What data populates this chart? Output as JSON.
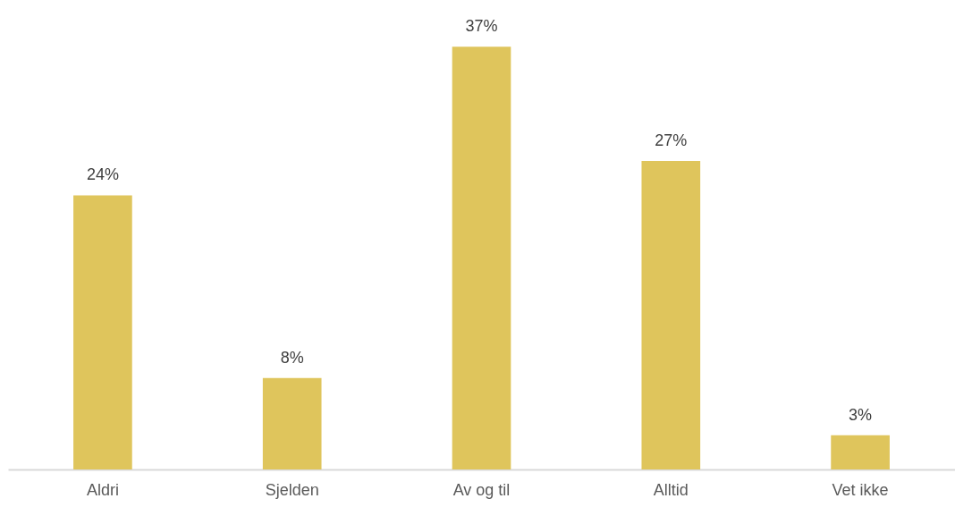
{
  "chart_data": {
    "type": "bar",
    "categories": [
      "Aldri",
      "Sjelden",
      "Av og til",
      "Alltid",
      "Vet ikke"
    ],
    "values": [
      24,
      8,
      37,
      27,
      3
    ],
    "value_labels": [
      "24%",
      "8%",
      "37%",
      "27%",
      "3%"
    ],
    "color": "#dfc55c",
    "grid": false
  }
}
